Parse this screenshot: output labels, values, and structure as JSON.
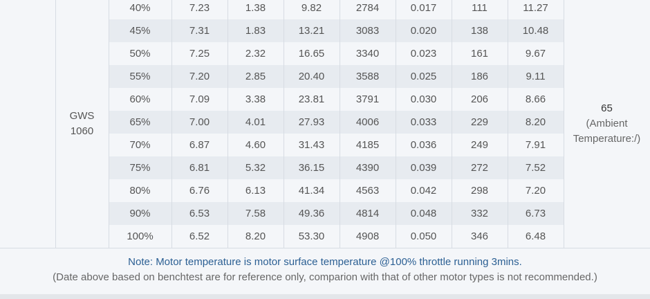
{
  "table": {
    "prop": [
      "GWS",
      "1060"
    ],
    "temperature": [
      "65",
      "(Ambient Temperature:/)"
    ],
    "rows": [
      [
        "40%",
        "7.23",
        "1.38",
        "9.82",
        "2784",
        "0.017",
        "111",
        "11.27"
      ],
      [
        "45%",
        "7.31",
        "1.83",
        "13.21",
        "3083",
        "0.020",
        "138",
        "10.48"
      ],
      [
        "50%",
        "7.25",
        "2.32",
        "16.65",
        "3340",
        "0.023",
        "161",
        "9.67"
      ],
      [
        "55%",
        "7.20",
        "2.85",
        "20.40",
        "3588",
        "0.025",
        "186",
        "9.11"
      ],
      [
        "60%",
        "7.09",
        "3.38",
        "23.81",
        "3791",
        "0.030",
        "206",
        "8.66"
      ],
      [
        "65%",
        "7.00",
        "4.01",
        "27.93",
        "4006",
        "0.033",
        "229",
        "8.20"
      ],
      [
        "70%",
        "6.87",
        "4.60",
        "31.43",
        "4185",
        "0.036",
        "249",
        "7.91"
      ],
      [
        "75%",
        "6.81",
        "5.32",
        "36.15",
        "4390",
        "0.039",
        "272",
        "7.52"
      ],
      [
        "80%",
        "6.76",
        "6.13",
        "41.34",
        "4563",
        "0.042",
        "298",
        "7.20"
      ],
      [
        "90%",
        "6.53",
        "7.58",
        "49.36",
        "4814",
        "0.048",
        "332",
        "6.73"
      ],
      [
        "100%",
        "6.52",
        "8.20",
        "53.30",
        "4908",
        "0.050",
        "346",
        "6.48"
      ]
    ]
  },
  "note": {
    "line1": "Note: Motor temperature is motor surface temperature @100% throttle running 3mins.",
    "line2": "(Date above based on benchtest are for reference only, comparion with that of other motor types is not recommended.)"
  }
}
